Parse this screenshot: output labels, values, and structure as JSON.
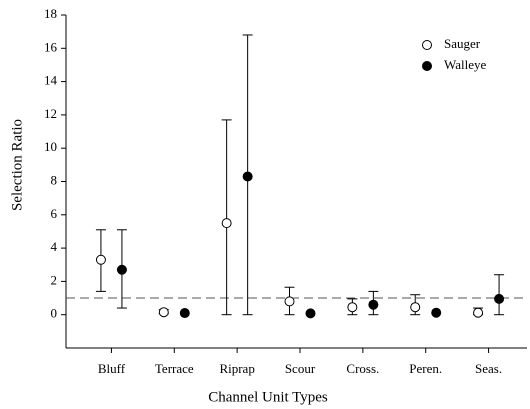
{
  "chart_data": {
    "type": "dot-errorbar",
    "xlabel": "Channel Unit Types",
    "ylabel": "Selection Ratio",
    "categories": [
      "Bluff",
      "Terrace",
      "Riprap",
      "Scour",
      "Cross.",
      "Peren.",
      "Seas."
    ],
    "series": [
      {
        "name": "Sauger",
        "color": "#000000",
        "filled": false,
        "values": [
          3.3,
          0.15,
          5.5,
          0.8,
          0.45,
          0.45,
          0.12
        ],
        "lower": [
          1.4,
          0.05,
          0,
          0,
          0,
          0,
          0
        ],
        "upper": [
          5.1,
          0.3,
          11.7,
          1.65,
          0.95,
          1.2,
          0.4
        ]
      },
      {
        "name": "Walleye",
        "color": "#000000",
        "filled": true,
        "values": [
          2.7,
          0.1,
          8.3,
          0.08,
          0.6,
          0.12,
          0.95
        ],
        "lower": [
          0.4,
          null,
          0,
          null,
          0,
          null,
          0
        ],
        "upper": [
          5.1,
          null,
          16.8,
          null,
          1.4,
          null,
          2.4
        ]
      }
    ],
    "reference_line": 1,
    "ylim": [
      -2,
      18
    ],
    "yticks": [
      0,
      2,
      4,
      6,
      8,
      10,
      12,
      14,
      16,
      18
    ],
    "legend": "upper-right"
  }
}
